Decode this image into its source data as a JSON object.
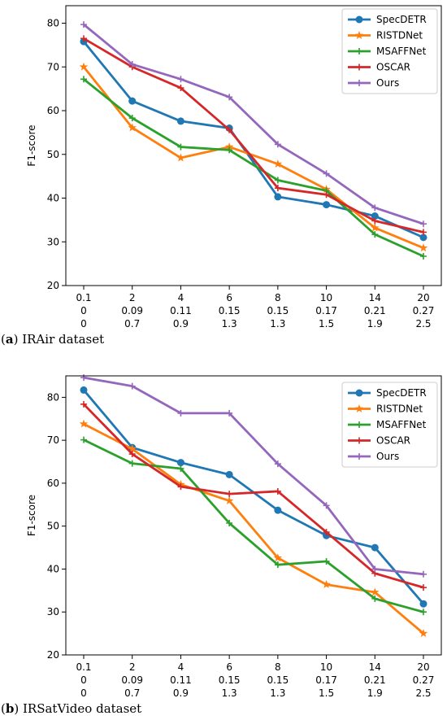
{
  "chart_data": [
    {
      "type": "line",
      "caption_letter": "a",
      "caption_text": "IRAir dataset",
      "ylabel": "F1-score",
      "ylim": [
        20,
        84
      ],
      "yticks": [
        20,
        30,
        40,
        50,
        60,
        70,
        80
      ],
      "x_tick_rows": [
        [
          "0.1",
          "2",
          "4",
          "6",
          "8",
          "10",
          "14",
          "20"
        ],
        [
          "0",
          "0.09",
          "0.11",
          "0.15",
          "0.15",
          "0.17",
          "0.21",
          "0.27"
        ],
        [
          "0",
          "0.7",
          "0.9",
          "1.3",
          "1.3",
          "1.5",
          "1.9",
          "2.5"
        ]
      ],
      "legend_position": "top-right",
      "series": [
        {
          "name": "SpecDETR",
          "color": "#1f77b4",
          "marker": "circle",
          "values": [
            75.8,
            62.2,
            57.6,
            56.0,
            40.3,
            38.5,
            35.9,
            31.0
          ]
        },
        {
          "name": "RISTDNet",
          "color": "#ff7f0e",
          "marker": "star",
          "values": [
            70.0,
            56.1,
            49.2,
            51.7,
            47.8,
            42.0,
            33.2,
            28.6
          ]
        },
        {
          "name": "MSAFFNet",
          "color": "#2ca02c",
          "marker": "plus",
          "values": [
            67.2,
            58.3,
            51.7,
            51.0,
            44.1,
            41.7,
            31.7,
            26.7
          ]
        },
        {
          "name": "OSCAR",
          "color": "#d62728",
          "marker": "plus",
          "values": [
            76.5,
            70.0,
            65.2,
            55.6,
            42.3,
            40.8,
            34.8,
            32.2
          ]
        },
        {
          "name": "Ours",
          "color": "#9467bd",
          "marker": "plus",
          "values": [
            79.7,
            70.6,
            67.2,
            63.1,
            52.3,
            45.6,
            37.8,
            34.1
          ]
        }
      ]
    },
    {
      "type": "line",
      "caption_letter": "b",
      "caption_text": "IRSatVideo dataset",
      "ylabel": "F1-score",
      "ylim": [
        20,
        85
      ],
      "yticks": [
        20,
        30,
        40,
        50,
        60,
        70,
        80
      ],
      "x_tick_rows": [
        [
          "0.1",
          "2",
          "4",
          "6",
          "8",
          "10",
          "14",
          "20"
        ],
        [
          "0",
          "0.09",
          "0.11",
          "0.15",
          "0.15",
          "0.17",
          "0.21",
          "0.27"
        ],
        [
          "0",
          "0.7",
          "0.9",
          "1.3",
          "1.3",
          "1.5",
          "1.9",
          "2.5"
        ]
      ],
      "legend_position": "top-right",
      "series": [
        {
          "name": "SpecDETR",
          "color": "#1f77b4",
          "marker": "circle",
          "values": [
            81.7,
            68.3,
            64.8,
            62.0,
            53.7,
            47.8,
            45.0,
            31.9
          ]
        },
        {
          "name": "RISTDNet",
          "color": "#ff7f0e",
          "marker": "star",
          "values": [
            73.8,
            68.0,
            59.7,
            55.9,
            42.6,
            36.4,
            34.6,
            25.0
          ]
        },
        {
          "name": "MSAFFNet",
          "color": "#2ca02c",
          "marker": "plus",
          "values": [
            70.1,
            64.6,
            63.4,
            50.7,
            41.0,
            41.8,
            33.1,
            30.0
          ]
        },
        {
          "name": "OSCAR",
          "color": "#d62728",
          "marker": "plus",
          "values": [
            78.4,
            66.8,
            59.2,
            57.5,
            58.1,
            48.6,
            39.0,
            35.7
          ]
        },
        {
          "name": "Ours",
          "color": "#9467bd",
          "marker": "plus",
          "values": [
            84.6,
            82.6,
            76.3,
            76.3,
            64.5,
            54.8,
            40.0,
            38.8
          ]
        }
      ]
    }
  ]
}
